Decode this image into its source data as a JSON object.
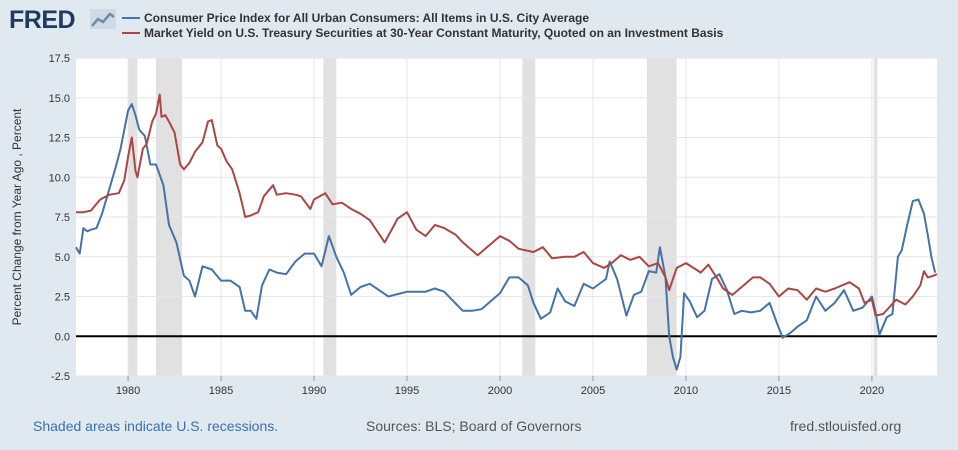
{
  "logo": "FRED",
  "footer": {
    "recession_note": "Shaded areas indicate U.S. recessions.",
    "sources": "Sources: BLS; Board of Governors",
    "site": "fred.stlouisfed.org"
  },
  "colors": {
    "background": "#e1e9f0",
    "plot_background": "#ffffff",
    "cpi": "#4572a7",
    "treasury": "#aa4643",
    "recession": "#e1e1e1",
    "zero_line": "#000000"
  },
  "chart_data": {
    "type": "line",
    "ylabel": "Percent Change from Year Ago , Percent",
    "xlabel": "",
    "xlim": [
      1977.2,
      2023.5
    ],
    "ylim": [
      -2.5,
      17.5
    ],
    "yticks": [
      -2.5,
      0.0,
      2.5,
      5.0,
      7.5,
      10.0,
      12.5,
      15.0,
      17.5
    ],
    "ytick_labels": [
      "-2.5",
      "0.0",
      "2.5",
      "5.0",
      "7.5",
      "10.0",
      "12.5",
      "15.0",
      "17.5"
    ],
    "xticks": [
      1980,
      1985,
      1990,
      1995,
      2000,
      2005,
      2010,
      2015,
      2020
    ],
    "xtick_labels": [
      "1980",
      "1985",
      "1990",
      "1995",
      "2000",
      "2005",
      "2010",
      "2015",
      "2020"
    ],
    "grid": true,
    "legend_position": "top",
    "recessions": [
      [
        1980.0,
        1980.5
      ],
      [
        1981.5,
        1982.9
      ],
      [
        1990.5,
        1991.2
      ],
      [
        2001.2,
        2001.9
      ],
      [
        2007.9,
        2009.5
      ],
      [
        2020.1,
        2020.3
      ]
    ],
    "series": [
      {
        "name": "Consumer Price Index for All Urban Consumers: All Items in U.S. City Average",
        "color": "#4572a7",
        "x": [
          1977.2,
          1977.4,
          1977.6,
          1977.8,
          1978.0,
          1978.3,
          1978.6,
          1979.0,
          1979.3,
          1979.6,
          1980.0,
          1980.2,
          1980.4,
          1980.6,
          1980.9,
          1981.2,
          1981.5,
          1981.9,
          1982.2,
          1982.6,
          1983.0,
          1983.3,
          1983.6,
          1984.0,
          1984.5,
          1985.0,
          1985.5,
          1986.0,
          1986.3,
          1986.6,
          1986.9,
          1987.2,
          1987.6,
          1988.0,
          1988.5,
          1989.0,
          1989.5,
          1990.0,
          1990.4,
          1990.8,
          1991.2,
          1991.6,
          1992.0,
          1992.5,
          1993.0,
          1994.0,
          1995.0,
          1996.0,
          1996.5,
          1997.0,
          1997.5,
          1998.0,
          1998.5,
          1999.0,
          1999.5,
          2000.0,
          2000.5,
          2001.0,
          2001.5,
          2001.8,
          2002.2,
          2002.7,
          2003.1,
          2003.5,
          2004.0,
          2004.5,
          2005.0,
          2005.7,
          2005.9,
          2006.3,
          2006.8,
          2007.2,
          2007.6,
          2008.0,
          2008.4,
          2008.6,
          2008.9,
          2009.1,
          2009.3,
          2009.5,
          2009.7,
          2009.9,
          2010.2,
          2010.6,
          2011.0,
          2011.4,
          2011.8,
          2012.2,
          2012.6,
          2013.0,
          2013.5,
          2014.0,
          2014.5,
          2014.9,
          2015.2,
          2015.6,
          2016.0,
          2016.5,
          2017.0,
          2017.5,
          2018.0,
          2018.5,
          2019.0,
          2019.5,
          2020.0,
          2020.2,
          2020.4,
          2020.8,
          2021.1,
          2021.4,
          2021.6,
          2021.9,
          2022.2,
          2022.5,
          2022.8,
          2023.0,
          2023.2,
          2023.4
        ],
        "values": [
          5.6,
          5.2,
          6.8,
          6.6,
          6.7,
          6.8,
          7.7,
          9.3,
          10.5,
          11.8,
          14.2,
          14.6,
          13.9,
          13.0,
          12.6,
          10.8,
          10.8,
          9.5,
          7.0,
          5.9,
          3.8,
          3.5,
          2.5,
          4.4,
          4.2,
          3.5,
          3.5,
          3.1,
          1.6,
          1.6,
          1.1,
          3.2,
          4.2,
          4.0,
          3.9,
          4.7,
          5.2,
          5.2,
          4.4,
          6.3,
          5.0,
          4.0,
          2.6,
          3.1,
          3.3,
          2.5,
          2.8,
          2.8,
          3.0,
          2.8,
          2.2,
          1.6,
          1.6,
          1.7,
          2.2,
          2.7,
          3.7,
          3.7,
          3.2,
          2.1,
          1.1,
          1.5,
          3.0,
          2.2,
          1.9,
          3.3,
          3.0,
          3.6,
          4.7,
          3.6,
          1.3,
          2.6,
          2.8,
          4.1,
          4.0,
          5.6,
          3.7,
          0.0,
          -1.3,
          -2.1,
          -1.3,
          2.7,
          2.2,
          1.2,
          1.6,
          3.6,
          3.9,
          2.9,
          1.4,
          1.6,
          1.5,
          1.6,
          2.1,
          0.8,
          -0.1,
          0.2,
          0.6,
          1.0,
          2.5,
          1.6,
          2.1,
          2.9,
          1.6,
          1.8,
          2.5,
          1.5,
          0.1,
          1.2,
          1.4,
          5.0,
          5.4,
          7.0,
          8.5,
          8.6,
          7.7,
          6.4,
          5.0,
          4.0
        ]
      },
      {
        "name": "Market Yield on U.S. Treasury Securities at 30-Year Constant Maturity, Quoted on an Investment Basis",
        "color": "#aa4643",
        "x": [
          1977.2,
          1977.6,
          1978.0,
          1978.5,
          1979.0,
          1979.5,
          1979.8,
          1980.0,
          1980.2,
          1980.4,
          1980.5,
          1980.8,
          1981.0,
          1981.3,
          1981.5,
          1981.7,
          1981.8,
          1982.0,
          1982.2,
          1982.5,
          1982.8,
          1983.0,
          1983.3,
          1983.6,
          1984.0,
          1984.3,
          1984.5,
          1984.8,
          1985.0,
          1985.3,
          1985.6,
          1986.0,
          1986.3,
          1986.6,
          1987.0,
          1987.3,
          1987.8,
          1988.0,
          1988.5,
          1989.0,
          1989.3,
          1989.8,
          1990.0,
          1990.6,
          1991.0,
          1991.5,
          1992.0,
          1992.5,
          1993.0,
          1993.8,
          1994.5,
          1995.0,
          1995.5,
          1996.0,
          1996.5,
          1997.0,
          1997.6,
          1998.0,
          1998.8,
          1999.3,
          2000.0,
          2000.5,
          2001.0,
          2001.8,
          2002.3,
          2002.8,
          2003.5,
          2004.0,
          2004.5,
          2005.0,
          2005.6,
          2006.0,
          2006.5,
          2007.0,
          2007.5,
          2008.0,
          2008.5,
          2008.9,
          2009.1,
          2009.5,
          2010.0,
          2010.8,
          2011.2,
          2011.7,
          2012.0,
          2012.5,
          2013.0,
          2013.6,
          2014.0,
          2014.5,
          2015.0,
          2015.5,
          2016.0,
          2016.5,
          2017.0,
          2017.5,
          2018.0,
          2018.8,
          2019.3,
          2019.6,
          2020.0,
          2020.2,
          2020.6,
          2021.0,
          2021.3,
          2021.8,
          2022.2,
          2022.6,
          2022.8,
          2023.0,
          2023.3,
          2023.5
        ],
        "values": [
          7.8,
          7.8,
          7.9,
          8.6,
          8.9,
          9.0,
          9.8,
          11.3,
          12.5,
          10.4,
          10.0,
          11.8,
          12.1,
          13.5,
          14.0,
          15.2,
          13.8,
          13.9,
          13.5,
          12.8,
          10.8,
          10.5,
          10.9,
          11.6,
          12.2,
          13.5,
          13.6,
          12.0,
          11.8,
          11.0,
          10.5,
          9.0,
          7.5,
          7.6,
          7.8,
          8.8,
          9.5,
          8.9,
          9.0,
          8.9,
          8.8,
          8.0,
          8.6,
          9.0,
          8.3,
          8.4,
          8.0,
          7.7,
          7.3,
          5.9,
          7.4,
          7.8,
          6.7,
          6.3,
          7.0,
          6.8,
          6.4,
          5.9,
          5.1,
          5.6,
          6.3,
          6.0,
          5.5,
          5.3,
          5.6,
          4.9,
          5.0,
          5.0,
          5.3,
          4.6,
          4.3,
          4.6,
          5.1,
          4.8,
          5.0,
          4.4,
          4.6,
          3.7,
          2.9,
          4.3,
          4.6,
          4.0,
          4.5,
          3.6,
          3.0,
          2.6,
          3.1,
          3.7,
          3.7,
          3.3,
          2.5,
          3.0,
          2.9,
          2.3,
          3.0,
          2.8,
          3.0,
          3.4,
          3.0,
          2.1,
          2.3,
          1.3,
          1.4,
          1.9,
          2.3,
          2.0,
          2.5,
          3.2,
          4.1,
          3.7,
          3.8,
          3.9
        ]
      }
    ]
  }
}
